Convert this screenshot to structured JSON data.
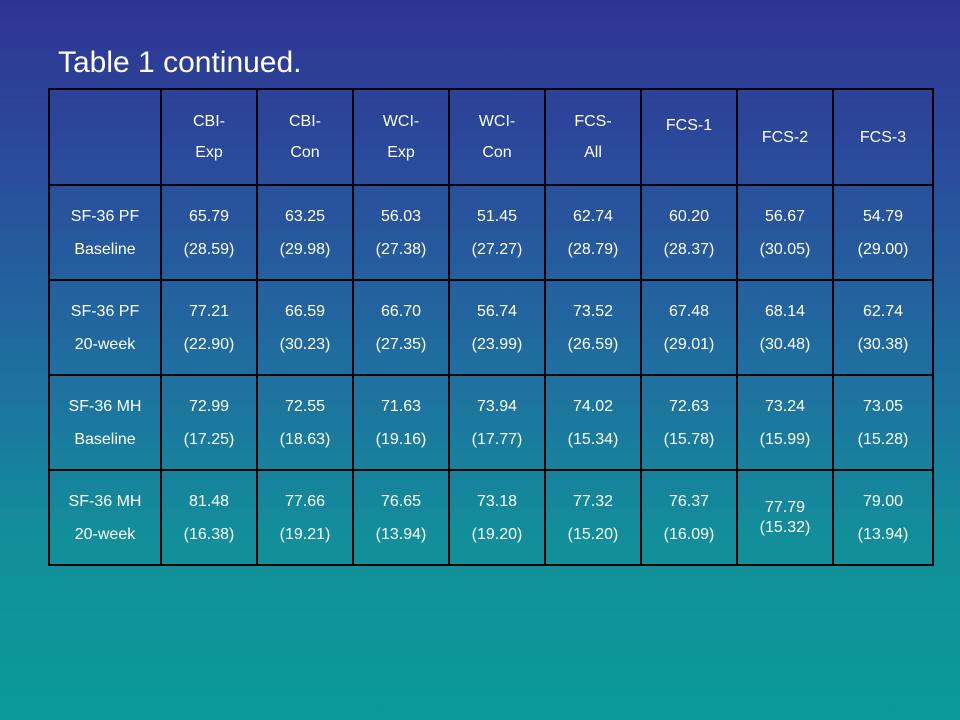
{
  "title": "Table 1 continued.",
  "table": {
    "columns": [
      [
        "CBI-",
        "Exp"
      ],
      [
        "CBI-",
        "Con"
      ],
      [
        "WCI-",
        "Exp"
      ],
      [
        "WCI-",
        "Con"
      ],
      [
        "FCS-",
        "All"
      ],
      [
        "FCS-1"
      ],
      [
        "FCS-2"
      ],
      [
        "FCS-3"
      ]
    ],
    "rows": [
      {
        "label": [
          "SF-36 PF",
          "Baseline"
        ],
        "cells": [
          [
            "65.79",
            "(28.59)"
          ],
          [
            "63.25",
            "(29.98)"
          ],
          [
            "56.03",
            "(27.38)"
          ],
          [
            "51.45",
            "(27.27)"
          ],
          [
            "62.74",
            "(28.79)"
          ],
          [
            "60.20",
            "(28.37)"
          ],
          [
            "56.67",
            "(30.05)"
          ],
          [
            "54.79",
            "(29.00)"
          ]
        ]
      },
      {
        "label": [
          "SF-36 PF",
          "20-week"
        ],
        "cells": [
          [
            "77.21",
            "(22.90)"
          ],
          [
            "66.59",
            "(30.23)"
          ],
          [
            "66.70",
            "(27.35)"
          ],
          [
            "56.74",
            "(23.99)"
          ],
          [
            "73.52",
            "(26.59)"
          ],
          [
            "67.48",
            "(29.01)"
          ],
          [
            "68.14",
            "(30.48)"
          ],
          [
            "62.74",
            "(30.38)"
          ]
        ]
      },
      {
        "label": [
          "SF-36 MH",
          "Baseline"
        ],
        "cells": [
          [
            "72.99",
            "(17.25)"
          ],
          [
            "72.55",
            "(18.63)"
          ],
          [
            "71.63",
            "(19.16)"
          ],
          [
            "73.94",
            "(17.77)"
          ],
          [
            "74.02",
            "(15.34)"
          ],
          [
            "72.63",
            "(15.78)"
          ],
          [
            "73.24",
            "(15.99)"
          ],
          [
            "73.05",
            "(15.28)"
          ]
        ]
      },
      {
        "label": [
          "SF-36 MH",
          "20-week"
        ],
        "cells": [
          [
            "81.48",
            "(16.38)"
          ],
          [
            "77.66",
            "(19.21)"
          ],
          [
            "76.65",
            "(13.94)"
          ],
          [
            "73.18",
            "(19.20)"
          ],
          [
            "77.32",
            "(15.20)"
          ],
          [
            "76.37",
            "(16.09)"
          ],
          [
            "77.79",
            "(15.32)"
          ],
          [
            "79.00",
            "(13.94)"
          ]
        ]
      }
    ]
  }
}
